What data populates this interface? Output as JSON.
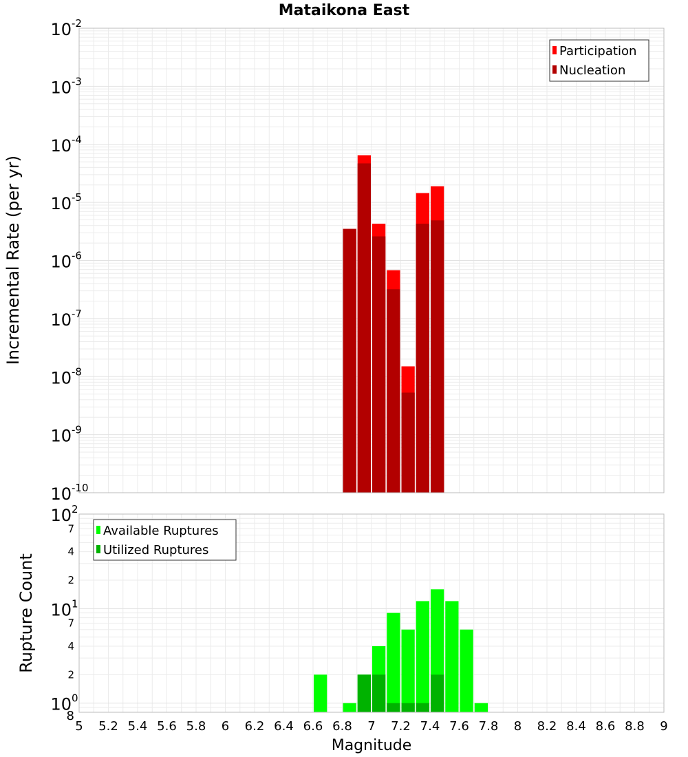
{
  "title": "Mataikona East",
  "xlabel": "Magnitude",
  "x_ticks": [
    "5",
    "5.2",
    "5.4",
    "5.6",
    "5.8",
    "6",
    "6.2",
    "6.4",
    "6.6",
    "6.8",
    "7",
    "7.2",
    "7.4",
    "7.6",
    "7.8",
    "8",
    "8.2",
    "8.4",
    "8.6",
    "8.8",
    "9"
  ],
  "colors": {
    "participation": "#ff0000",
    "nucleation": "#b20000",
    "available": "#00ff00",
    "utilized": "#00b200",
    "grid": "#ebebeb",
    "frame": "#bbbbbb"
  },
  "chart_data": [
    {
      "type": "bar",
      "name": "rate-chart",
      "title": "Mataikona East",
      "xlabel": "Magnitude",
      "ylabel": "Incremental Rate (per yr)",
      "yscale": "log",
      "ylim": [
        1e-10,
        0.01
      ],
      "xlim": [
        5,
        9
      ],
      "bin_width": 0.1,
      "y_major_ticks": [
        {
          "base": "10",
          "exp": "-2",
          "value": 0.01
        },
        {
          "base": "10",
          "exp": "-3",
          "value": 0.001
        },
        {
          "base": "10",
          "exp": "-4",
          "value": 0.0001
        },
        {
          "base": "10",
          "exp": "-5",
          "value": 1e-05
        },
        {
          "base": "10",
          "exp": "-6",
          "value": 1e-06
        },
        {
          "base": "10",
          "exp": "-7",
          "value": 1e-07
        },
        {
          "base": "10",
          "exp": "-8",
          "value": 1e-08
        },
        {
          "base": "10",
          "exp": "-9",
          "value": 1e-09
        },
        {
          "base": "10",
          "exp": "-10",
          "value": 1e-10
        }
      ],
      "legend": [
        "Participation",
        "Nucleation"
      ],
      "series": [
        {
          "name": "Participation",
          "x": [
            6.85,
            6.95,
            7.05,
            7.15,
            7.25,
            7.35,
            7.45
          ],
          "values": [
            3.5e-06,
            6.5e-05,
            4.3e-06,
            6.8e-07,
            1.5e-08,
            1.45e-05,
            1.9e-05
          ]
        },
        {
          "name": "Nucleation",
          "x": [
            6.85,
            6.95,
            7.05,
            7.15,
            7.25,
            7.35,
            7.45
          ],
          "values": [
            3.5e-06,
            4.7e-05,
            2.6e-06,
            3.2e-07,
            5.3e-09,
            4.3e-06,
            4.9e-06
          ]
        }
      ]
    },
    {
      "type": "bar",
      "name": "count-chart",
      "xlabel": "Magnitude",
      "ylabel": "Rupture Count",
      "yscale": "log",
      "ylim": [
        0.8,
        100
      ],
      "xlim": [
        5,
        9
      ],
      "bin_width": 0.1,
      "y_major_ticks": [
        {
          "base": "10",
          "exp": "2",
          "value": 100
        },
        {
          "base": "10",
          "exp": "1",
          "value": 10
        },
        {
          "base": "10",
          "exp": "0",
          "value": 1
        }
      ],
      "y_minor_ticks": [
        {
          "label": "7",
          "value": 70
        },
        {
          "label": "4",
          "value": 40
        },
        {
          "label": "2",
          "value": 20
        },
        {
          "label": "7",
          "value": 7
        },
        {
          "label": "4",
          "value": 4
        },
        {
          "label": "2",
          "value": 2
        },
        {
          "label": "8",
          "value": 0.8
        }
      ],
      "legend": [
        "Available Ruptures",
        "Utilized Ruptures"
      ],
      "series": [
        {
          "name": "Available Ruptures",
          "x": [
            6.65,
            6.85,
            6.95,
            7.05,
            7.15,
            7.25,
            7.35,
            7.45,
            7.55,
            7.65,
            7.75
          ],
          "values": [
            2,
            1,
            2,
            4,
            9,
            6,
            12,
            16,
            12,
            6,
            1
          ]
        },
        {
          "name": "Utilized Ruptures",
          "x": [
            6.95,
            7.05,
            7.15,
            7.25,
            7.35,
            7.45
          ],
          "values": [
            2,
            2,
            1,
            1,
            1,
            2
          ]
        }
      ]
    }
  ]
}
